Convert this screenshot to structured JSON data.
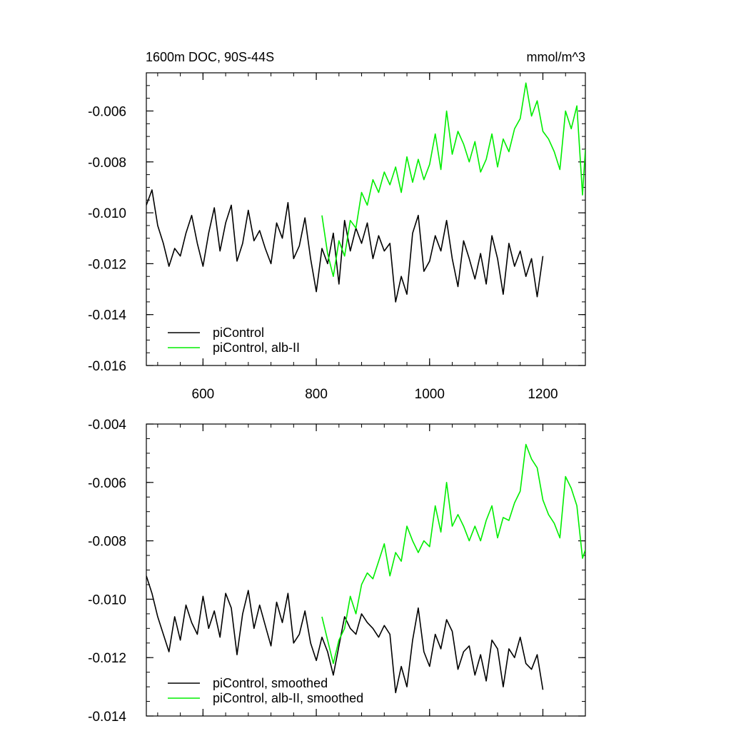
{
  "colors": {
    "control": "#000000",
    "experiment": "#00ee00"
  },
  "chart_data": [
    {
      "type": "line",
      "title": "1600m DOC, 90S-44S",
      "units": "mmol/m^3",
      "xlim": [
        500,
        1275
      ],
      "ylim": [
        -0.016,
        -0.0045
      ],
      "xticks": [
        600,
        800,
        1000,
        1200
      ],
      "yticks": [
        -0.016,
        -0.014,
        -0.012,
        -0.01,
        -0.008,
        -0.006
      ],
      "ytick_labels": [
        "-0.016",
        "-0.014",
        "-0.012",
        "-0.010",
        "-0.008",
        "-0.006"
      ],
      "xtick_labels": [
        "600",
        "800",
        "1000",
        "1200"
      ],
      "legend_position": "bottom-left",
      "series": [
        {
          "name": "piControl",
          "color": "#000000",
          "x": [
            500,
            510,
            520,
            530,
            540,
            550,
            560,
            570,
            580,
            590,
            600,
            610,
            620,
            630,
            640,
            650,
            660,
            670,
            680,
            690,
            700,
            710,
            720,
            730,
            740,
            750,
            760,
            770,
            780,
            790,
            800,
            810,
            820,
            830,
            840,
            850,
            860,
            870,
            880,
            890,
            900,
            910,
            920,
            930,
            940,
            950,
            960,
            970,
            980,
            990,
            1000,
            1010,
            1020,
            1030,
            1040,
            1050,
            1060,
            1070,
            1080,
            1090,
            1100,
            1110,
            1120,
            1130,
            1140,
            1150,
            1160,
            1170,
            1180,
            1190,
            1200
          ],
          "y": [
            -0.0097,
            -0.0091,
            -0.0105,
            -0.0112,
            -0.0121,
            -0.0114,
            -0.0117,
            -0.0108,
            -0.0101,
            -0.0112,
            -0.0121,
            -0.0108,
            -0.0098,
            -0.0115,
            -0.0104,
            -0.0097,
            -0.0119,
            -0.0112,
            -0.0099,
            -0.0111,
            -0.0107,
            -0.0114,
            -0.012,
            -0.0104,
            -0.011,
            -0.0096,
            -0.0118,
            -0.0113,
            -0.0102,
            -0.0118,
            -0.0131,
            -0.0114,
            -0.012,
            -0.0108,
            -0.0128,
            -0.0103,
            -0.0115,
            -0.0106,
            -0.0112,
            -0.0104,
            -0.0118,
            -0.0109,
            -0.0115,
            -0.0112,
            -0.0135,
            -0.0125,
            -0.0132,
            -0.0108,
            -0.0101,
            -0.0123,
            -0.0119,
            -0.0109,
            -0.0115,
            -0.0103,
            -0.0118,
            -0.0129,
            -0.0111,
            -0.0118,
            -0.0126,
            -0.0116,
            -0.0128,
            -0.0109,
            -0.0118,
            -0.0132,
            -0.0112,
            -0.0121,
            -0.0115,
            -0.0125,
            -0.0118,
            -0.0133,
            -0.0117
          ]
        },
        {
          "name": "piControl, alb-II",
          "color": "#00ee00",
          "x": [
            810,
            820,
            830,
            840,
            850,
            860,
            870,
            880,
            890,
            900,
            910,
            920,
            930,
            940,
            950,
            960,
            970,
            980,
            990,
            1000,
            1010,
            1020,
            1030,
            1040,
            1050,
            1060,
            1070,
            1080,
            1090,
            1100,
            1110,
            1120,
            1130,
            1140,
            1150,
            1160,
            1170,
            1180,
            1190,
            1200,
            1210,
            1220,
            1230,
            1240,
            1250,
            1260,
            1270,
            1275
          ],
          "y": [
            -0.0101,
            -0.0116,
            -0.0125,
            -0.0111,
            -0.0117,
            -0.0103,
            -0.0106,
            -0.0092,
            -0.0097,
            -0.0087,
            -0.0092,
            -0.0084,
            -0.0089,
            -0.0082,
            -0.0092,
            -0.0078,
            -0.0088,
            -0.0079,
            -0.0087,
            -0.0081,
            -0.0069,
            -0.0083,
            -0.006,
            -0.0077,
            -0.0068,
            -0.0073,
            -0.008,
            -0.0072,
            -0.0084,
            -0.0079,
            -0.0069,
            -0.0082,
            -0.0071,
            -0.0076,
            -0.0067,
            -0.0063,
            -0.0049,
            -0.0062,
            -0.0056,
            -0.0068,
            -0.0071,
            -0.0076,
            -0.0083,
            -0.006,
            -0.0067,
            -0.0058,
            -0.0093,
            -0.0075
          ]
        }
      ]
    },
    {
      "type": "line",
      "xlim": [
        500,
        1275
      ],
      "ylim": [
        -0.014,
        -0.004
      ],
      "xticks": [
        600,
        800,
        1000,
        1200
      ],
      "yticks": [
        -0.014,
        -0.012,
        -0.01,
        -0.008,
        -0.006,
        -0.004
      ],
      "ytick_labels": [
        "-0.014",
        "-0.012",
        "-0.010",
        "-0.008",
        "-0.006",
        "-0.004"
      ],
      "legend_position": "bottom-left",
      "series": [
        {
          "name": "piControl, smoothed",
          "color": "#000000",
          "x": [
            500,
            510,
            520,
            530,
            540,
            550,
            560,
            570,
            580,
            590,
            600,
            610,
            620,
            630,
            640,
            650,
            660,
            670,
            680,
            690,
            700,
            710,
            720,
            730,
            740,
            750,
            760,
            770,
            780,
            790,
            800,
            810,
            820,
            830,
            840,
            850,
            860,
            870,
            880,
            890,
            900,
            910,
            920,
            930,
            940,
            950,
            960,
            970,
            980,
            990,
            1000,
            1010,
            1020,
            1030,
            1040,
            1050,
            1060,
            1070,
            1080,
            1090,
            1100,
            1110,
            1120,
            1130,
            1140,
            1150,
            1160,
            1170,
            1180,
            1190,
            1200
          ],
          "y": [
            -0.0092,
            -0.0098,
            -0.0106,
            -0.0112,
            -0.0118,
            -0.0106,
            -0.0114,
            -0.0102,
            -0.0108,
            -0.0112,
            -0.0099,
            -0.011,
            -0.0104,
            -0.0113,
            -0.0098,
            -0.0103,
            -0.0119,
            -0.0105,
            -0.0097,
            -0.011,
            -0.0102,
            -0.0109,
            -0.0116,
            -0.0101,
            -0.0108,
            -0.0098,
            -0.0115,
            -0.0112,
            -0.0104,
            -0.0115,
            -0.0121,
            -0.0113,
            -0.0118,
            -0.0126,
            -0.0116,
            -0.0106,
            -0.011,
            -0.0112,
            -0.0105,
            -0.0108,
            -0.011,
            -0.0113,
            -0.0109,
            -0.0112,
            -0.0132,
            -0.0123,
            -0.013,
            -0.0114,
            -0.0103,
            -0.0118,
            -0.0123,
            -0.0112,
            -0.0117,
            -0.0107,
            -0.0111,
            -0.0124,
            -0.0118,
            -0.0116,
            -0.0126,
            -0.0119,
            -0.0128,
            -0.0114,
            -0.0117,
            -0.013,
            -0.0117,
            -0.012,
            -0.0113,
            -0.0122,
            -0.0124,
            -0.0119,
            -0.0131
          ]
        },
        {
          "name": "piControl, alb-II, smoothed",
          "color": "#00ee00",
          "x": [
            810,
            820,
            830,
            840,
            850,
            860,
            870,
            880,
            890,
            900,
            910,
            920,
            930,
            940,
            950,
            960,
            970,
            980,
            990,
            1000,
            1010,
            1020,
            1030,
            1040,
            1050,
            1060,
            1070,
            1080,
            1090,
            1100,
            1110,
            1120,
            1130,
            1140,
            1150,
            1160,
            1170,
            1180,
            1190,
            1200,
            1210,
            1220,
            1230,
            1240,
            1250,
            1260,
            1270,
            1275
          ],
          "y": [
            -0.0106,
            -0.0114,
            -0.0122,
            -0.0114,
            -0.011,
            -0.0099,
            -0.0105,
            -0.0095,
            -0.0091,
            -0.0093,
            -0.0087,
            -0.0081,
            -0.0092,
            -0.0084,
            -0.0087,
            -0.0075,
            -0.008,
            -0.0084,
            -0.008,
            -0.0082,
            -0.0068,
            -0.0077,
            -0.006,
            -0.0075,
            -0.0071,
            -0.0075,
            -0.008,
            -0.0075,
            -0.008,
            -0.0073,
            -0.0068,
            -0.0079,
            -0.0072,
            -0.0073,
            -0.0067,
            -0.0063,
            -0.0047,
            -0.0052,
            -0.0055,
            -0.0066,
            -0.0071,
            -0.0074,
            -0.0079,
            -0.0058,
            -0.0062,
            -0.0068,
            -0.0086,
            -0.0083
          ]
        }
      ]
    }
  ]
}
